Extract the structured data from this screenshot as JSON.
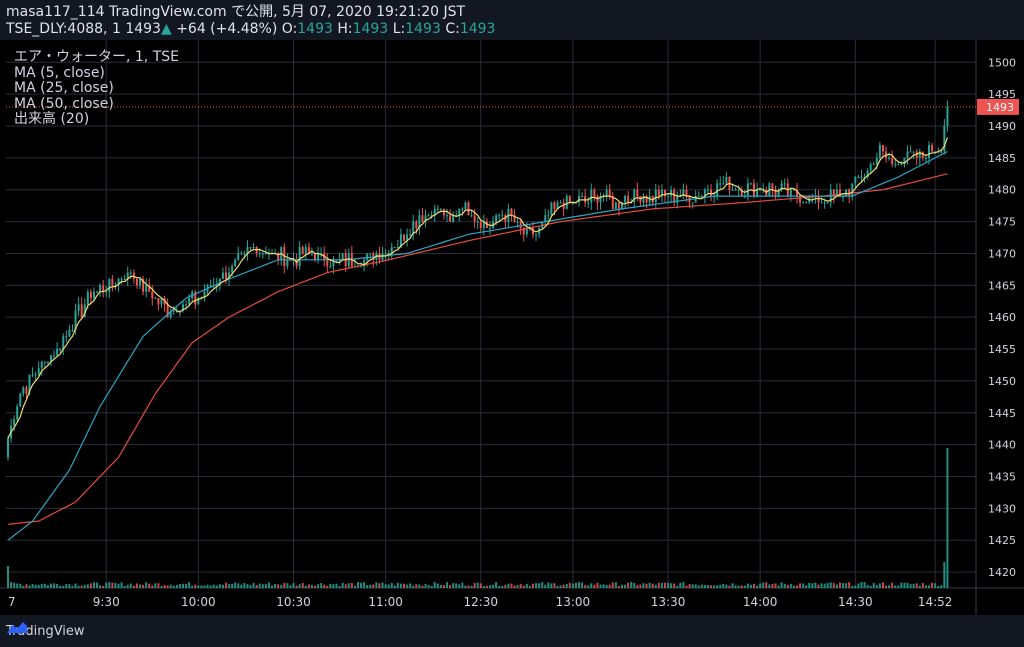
{
  "header": {
    "line1": "masa117_114 TradingView.com で公開, 5月 07, 2020 19:21:20 JST",
    "symbol": "TSE_DLY:4088, 1",
    "price": "1493",
    "change_arrow": "▲",
    "change": "+64 (+4.48%)",
    "o_label": "O:",
    "o_val": "1493",
    "h_label": "H:",
    "h_val": "1493",
    "l_label": "L:",
    "l_val": "1493",
    "c_label": "C:",
    "c_val": "1493"
  },
  "legend": {
    "title": "エア・ウォーター, 1, TSE",
    "ma5": "MA (5, close)",
    "ma25": "MA (25, close)",
    "ma50": "MA (50, close)",
    "volume": "出来高 (20)"
  },
  "footer": {
    "brand": "TradingView"
  },
  "colors": {
    "background": "#000000",
    "grid": "#2a2e39",
    "up": "#26a69a",
    "down": "#ef5350",
    "ma5": "#f5d76e",
    "ma25": "#2aa5c6",
    "ma50": "#e74c3c",
    "last_price": "#f05a28"
  },
  "chart_data": {
    "type": "candlestick",
    "y_ticks": [
      1500,
      1495,
      1490,
      1485,
      1480,
      1475,
      1470,
      1465,
      1460,
      1455,
      1450,
      1445,
      1440,
      1435,
      1430,
      1425,
      1420
    ],
    "ylim": [
      1417.5,
      1503.5
    ],
    "x_ticks": [
      "7",
      "9:30",
      "10:00",
      "10:30",
      "11:00",
      "12:30",
      "13:00",
      "13:30",
      "14:00",
      "14:30",
      "14:52"
    ],
    "x_tick_index": [
      0,
      32,
      62,
      93,
      123,
      154,
      184,
      215,
      245,
      276,
      302
    ],
    "last_price": 1493,
    "last_price_label": "1493",
    "close_anchors": [
      [
        0,
        1441
      ],
      [
        4,
        1448
      ],
      [
        10,
        1452
      ],
      [
        16,
        1455
      ],
      [
        22,
        1460
      ],
      [
        28,
        1464
      ],
      [
        34,
        1465
      ],
      [
        40,
        1467
      ],
      [
        46,
        1464
      ],
      [
        52,
        1461
      ],
      [
        58,
        1462
      ],
      [
        62,
        1463
      ],
      [
        68,
        1466
      ],
      [
        74,
        1468
      ],
      [
        80,
        1471
      ],
      [
        86,
        1470
      ],
      [
        92,
        1469
      ],
      [
        98,
        1470
      ],
      [
        104,
        1469
      ],
      [
        110,
        1469
      ],
      [
        116,
        1469
      ],
      [
        122,
        1470
      ],
      [
        128,
        1472
      ],
      [
        134,
        1476
      ],
      [
        140,
        1477
      ],
      [
        144,
        1475
      ],
      [
        148,
        1478
      ],
      [
        152,
        1476
      ],
      [
        156,
        1474
      ],
      [
        160,
        1476
      ],
      [
        164,
        1476
      ],
      [
        168,
        1473
      ],
      [
        172,
        1473
      ],
      [
        176,
        1476
      ],
      [
        180,
        1478
      ],
      [
        186,
        1478
      ],
      [
        192,
        1479
      ],
      [
        198,
        1478
      ],
      [
        204,
        1479
      ],
      [
        210,
        1479
      ],
      [
        216,
        1479
      ],
      [
        222,
        1479
      ],
      [
        228,
        1480
      ],
      [
        234,
        1481
      ],
      [
        240,
        1480
      ],
      [
        246,
        1480
      ],
      [
        252,
        1480
      ],
      [
        258,
        1479
      ],
      [
        264,
        1478
      ],
      [
        268,
        1479
      ],
      [
        272,
        1479
      ],
      [
        276,
        1481
      ],
      [
        280,
        1483
      ],
      [
        284,
        1486
      ],
      [
        288,
        1484
      ],
      [
        292,
        1485
      ],
      [
        296,
        1485
      ],
      [
        300,
        1486
      ],
      [
        304,
        1487
      ],
      [
        306,
        1493
      ]
    ],
    "ma25_anchors": [
      [
        0,
        1425
      ],
      [
        8,
        1428
      ],
      [
        20,
        1436
      ],
      [
        30,
        1446
      ],
      [
        44,
        1457
      ],
      [
        58,
        1463
      ],
      [
        72,
        1466
      ],
      [
        88,
        1469
      ],
      [
        110,
        1469
      ],
      [
        130,
        1470
      ],
      [
        150,
        1473
      ],
      [
        175,
        1475
      ],
      [
        200,
        1477
      ],
      [
        230,
        1479
      ],
      [
        255,
        1479
      ],
      [
        275,
        1479
      ],
      [
        290,
        1482
      ],
      [
        306,
        1486
      ]
    ],
    "ma50_anchors": [
      [
        0,
        1427.5
      ],
      [
        10,
        1428
      ],
      [
        22,
        1431
      ],
      [
        36,
        1438
      ],
      [
        48,
        1448
      ],
      [
        60,
        1456
      ],
      [
        72,
        1460
      ],
      [
        88,
        1464
      ],
      [
        104,
        1467
      ],
      [
        124,
        1469
      ],
      [
        150,
        1472
      ],
      [
        180,
        1475
      ],
      [
        210,
        1477
      ],
      [
        240,
        1478
      ],
      [
        265,
        1479
      ],
      [
        285,
        1480
      ],
      [
        306,
        1482.5
      ]
    ],
    "volume_last_bar_price_equiv": 1439.5,
    "n_bars": 307
  }
}
